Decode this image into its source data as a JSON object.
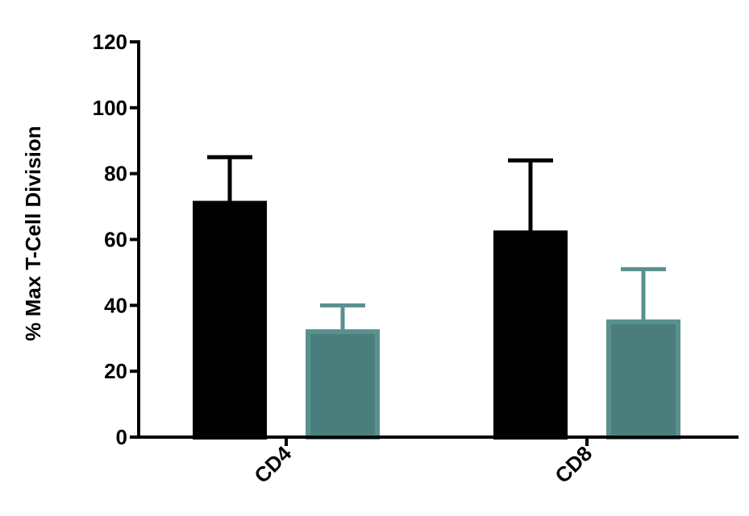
{
  "chart_data": {
    "type": "bar",
    "title": "",
    "xlabel": "",
    "ylabel": "% Max T-Cell Division",
    "categories": [
      "CD4",
      "CD8"
    ],
    "ylim": [
      0,
      120
    ],
    "yticks": [
      0,
      20,
      40,
      60,
      80,
      100,
      120
    ],
    "grid": false,
    "legend": "none",
    "series": [
      {
        "fill": "#000000",
        "stroke": "#000000",
        "values": [
          71,
          62
        ],
        "error_upper": [
          14,
          22
        ]
      },
      {
        "fill": "#4a7d7b",
        "stroke": "#58918e",
        "values": [
          32,
          35
        ],
        "error_upper": [
          8,
          16
        ]
      }
    ]
  }
}
